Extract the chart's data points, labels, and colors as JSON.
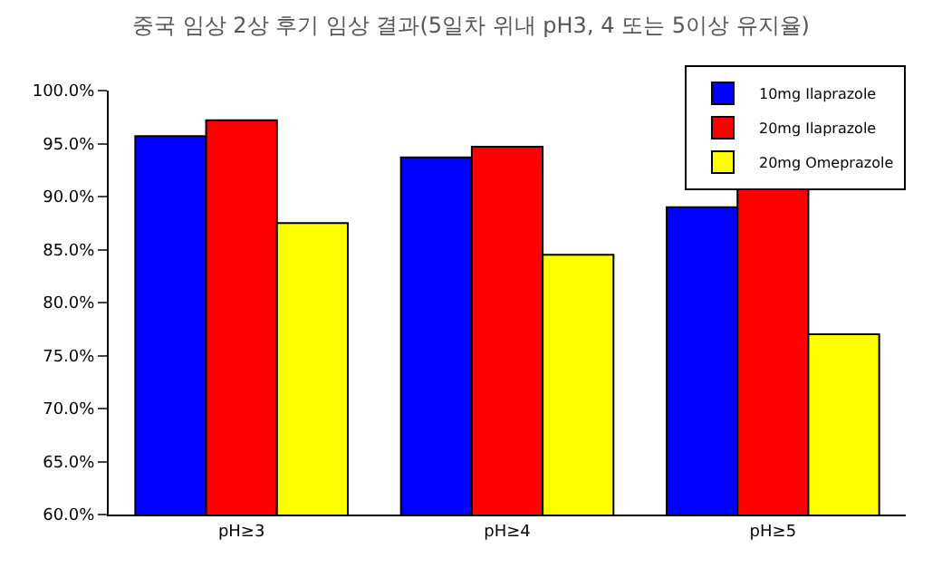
{
  "chart_data": {
    "type": "bar",
    "title": "중국 임상 2상 후기 임상 결과(5일차 위내 pH3, 4 또는 5이상 유지율)",
    "categories": [
      "pH≥3",
      "pH≥4",
      "pH≥5"
    ],
    "series": [
      {
        "name": "10mg Ilaprazole",
        "color": "#0000ff",
        "values": [
          95.7,
          93.7,
          89.0
        ]
      },
      {
        "name": "20mg Ilaprazole",
        "color": "#ff0000",
        "values": [
          97.2,
          94.7,
          90.7
        ]
      },
      {
        "name": "20mg Omeprazole",
        "color": "#ffff00",
        "values": [
          87.5,
          84.5,
          77.0
        ]
      }
    ],
    "ylim": [
      60,
      100
    ],
    "yticks": [
      {
        "value": 60,
        "label": "60.0%"
      },
      {
        "value": 65,
        "label": "65.0%"
      },
      {
        "value": 70,
        "label": "70.0%"
      },
      {
        "value": 75,
        "label": "75.0%"
      },
      {
        "value": 80,
        "label": "80.0%"
      },
      {
        "value": 85,
        "label": "85.0%"
      },
      {
        "value": 90,
        "label": "90.0%"
      },
      {
        "value": 95,
        "label": "95.0%"
      },
      {
        "value": 100,
        "label": "100.0%"
      }
    ],
    "legend": "top right"
  }
}
